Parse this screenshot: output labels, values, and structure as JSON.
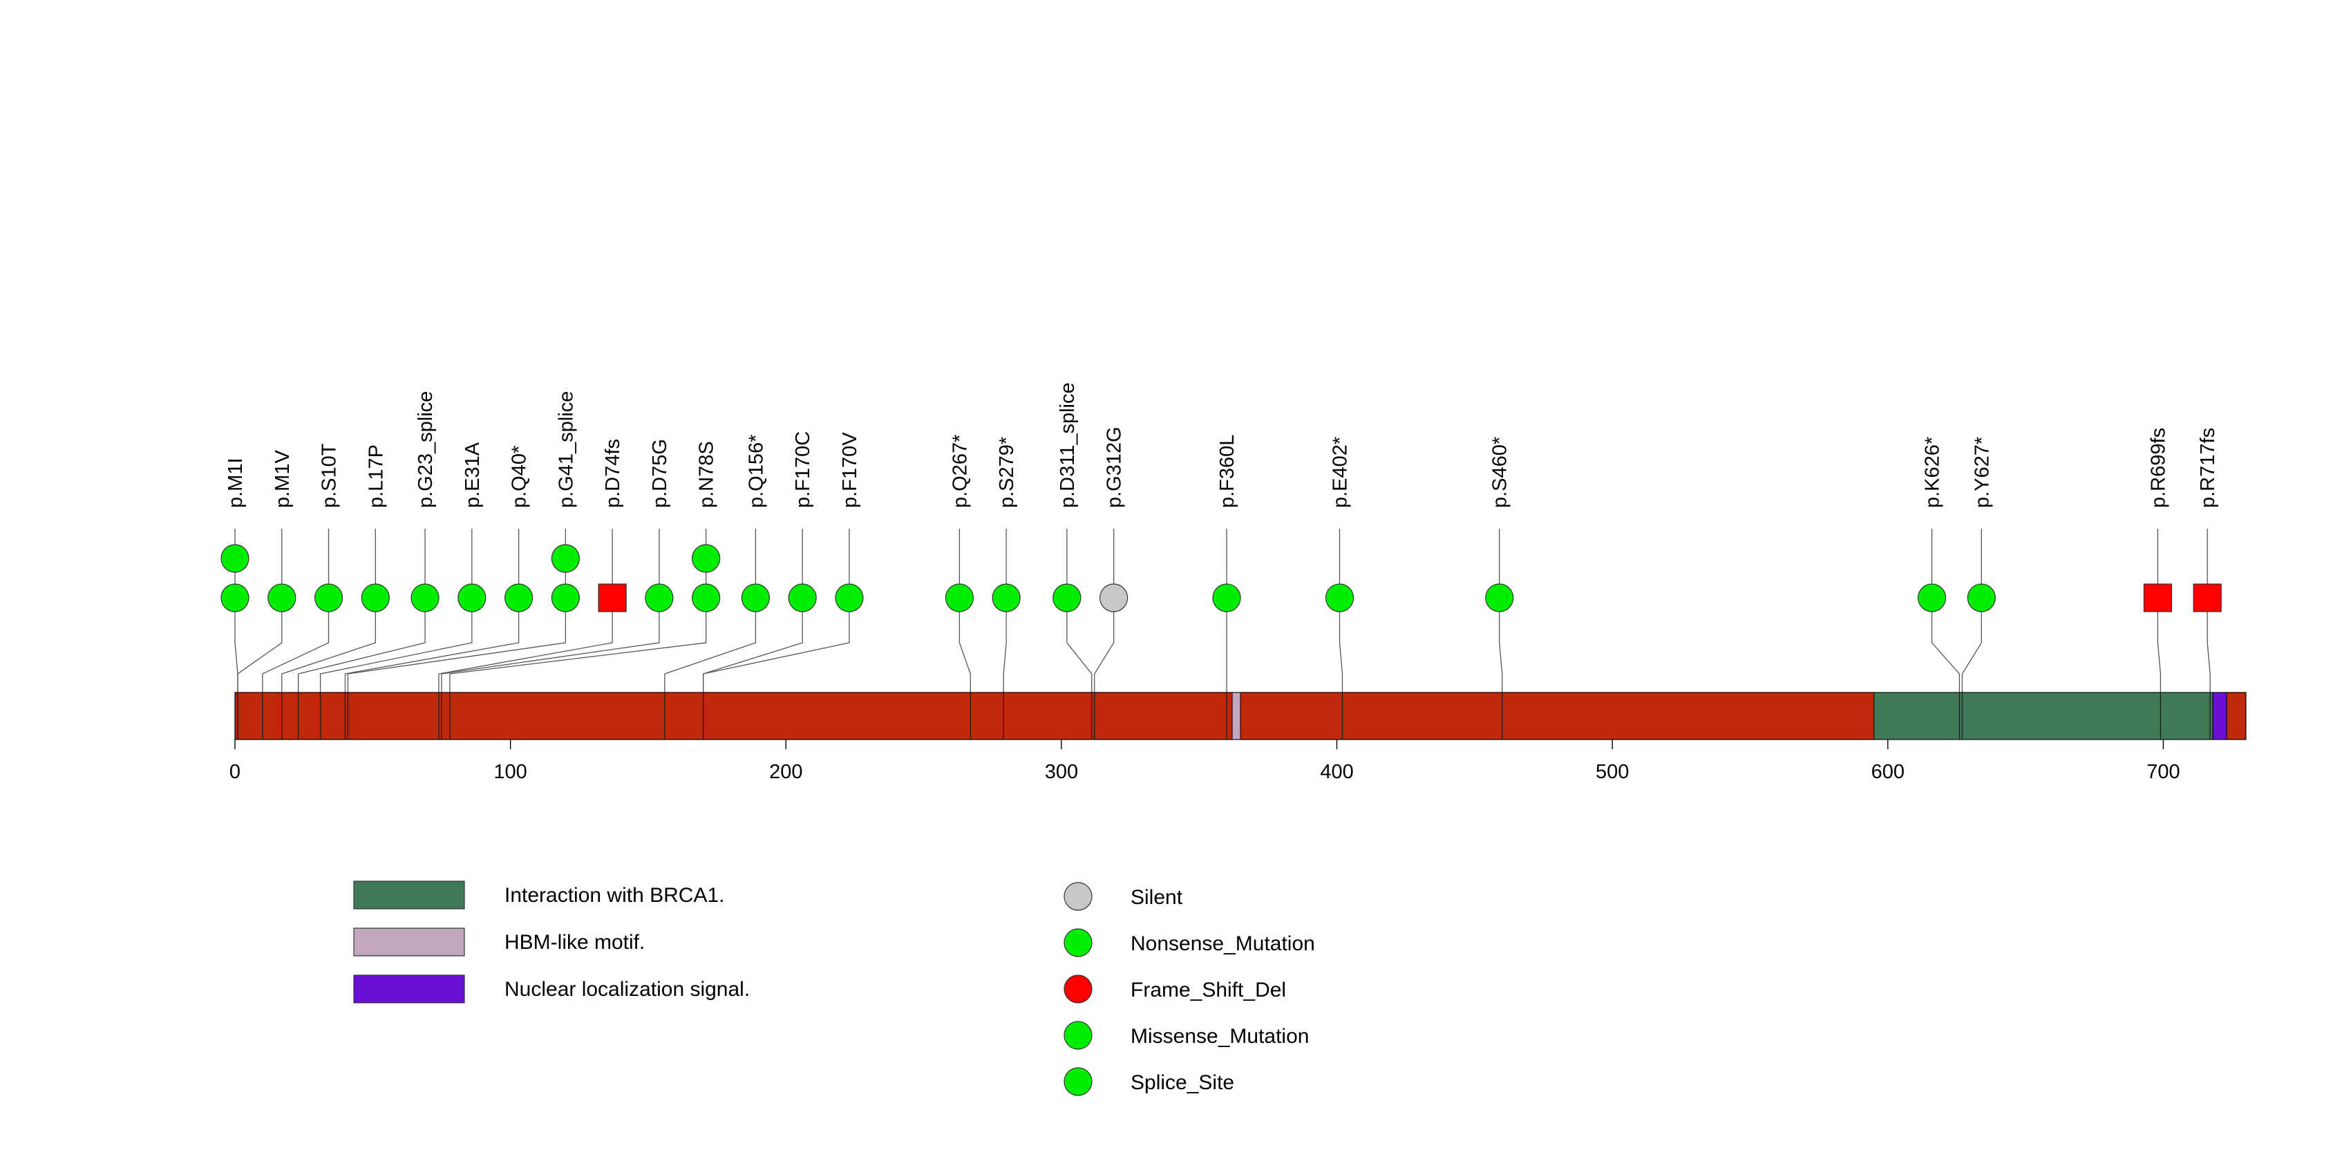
{
  "chart_data": {
    "type": "lollipop",
    "protein_length": 730,
    "x_ticks": [
      0,
      100,
      200,
      300,
      400,
      500,
      600,
      700
    ],
    "domains": [
      {
        "name": "Interaction with BRCA1.",
        "start": 595,
        "end": 718,
        "color": "#3f7a56"
      },
      {
        "name": "HBM-like motif.",
        "start": 362,
        "end": 365,
        "color": "#c4a6c0"
      },
      {
        "name": "Nuclear localization signal.",
        "start": 718,
        "end": 723,
        "color": "#6a0fd6"
      }
    ],
    "backbone_color": "#c1280a",
    "mutation_types": [
      {
        "name": "Silent",
        "color": "#c8c8c8",
        "shape": "circle"
      },
      {
        "name": "Nonsense_Mutation",
        "color": "#00ee00",
        "shape": "circle"
      },
      {
        "name": "Frame_Shift_Del",
        "color": "#ff0000",
        "shape": "square"
      },
      {
        "name": "Missense_Mutation",
        "color": "#00ee00",
        "shape": "circle"
      },
      {
        "name": "Splice_Site",
        "color": "#00ee00",
        "shape": "circle"
      }
    ],
    "mutations": [
      {
        "label": "p.M1I",
        "position": 1,
        "slot": 0,
        "count": 2,
        "type": "Missense_Mutation"
      },
      {
        "label": "p.M1V",
        "position": 1,
        "slot": 17,
        "count": 1,
        "type": "Missense_Mutation"
      },
      {
        "label": "p.S10T",
        "position": 10,
        "slot": 34,
        "count": 1,
        "type": "Missense_Mutation"
      },
      {
        "label": "p.L17P",
        "position": 17,
        "slot": 51,
        "count": 1,
        "type": "Missense_Mutation"
      },
      {
        "label": "p.G23_splice",
        "position": 23,
        "slot": 69,
        "count": 1,
        "type": "Splice_Site"
      },
      {
        "label": "p.E31A",
        "position": 31,
        "slot": 86,
        "count": 1,
        "type": "Missense_Mutation"
      },
      {
        "label": "p.Q40*",
        "position": 40,
        "slot": 103,
        "count": 1,
        "type": "Nonsense_Mutation"
      },
      {
        "label": "p.G41_splice",
        "position": 41,
        "slot": 120,
        "count": 2,
        "type": "Splice_Site"
      },
      {
        "label": "p.D74fs",
        "position": 74,
        "slot": 137,
        "count": 1,
        "type": "Frame_Shift_Del"
      },
      {
        "label": "p.D75G",
        "position": 75,
        "slot": 154,
        "count": 1,
        "type": "Missense_Mutation"
      },
      {
        "label": "p.N78S",
        "position": 78,
        "slot": 171,
        "count": 2,
        "type": "Missense_Mutation"
      },
      {
        "label": "p.Q156*",
        "position": 156,
        "slot": 189,
        "count": 1,
        "type": "Nonsense_Mutation"
      },
      {
        "label": "p.F170C",
        "position": 170,
        "slot": 206,
        "count": 1,
        "type": "Missense_Mutation"
      },
      {
        "label": "p.F170V",
        "position": 170,
        "slot": 223,
        "count": 1,
        "type": "Missense_Mutation"
      },
      {
        "label": "p.Q267*",
        "position": 267,
        "slot": 263,
        "count": 1,
        "type": "Nonsense_Mutation"
      },
      {
        "label": "p.S279*",
        "position": 279,
        "slot": 280,
        "count": 1,
        "type": "Nonsense_Mutation"
      },
      {
        "label": "p.D311_splice",
        "position": 311,
        "slot": 302,
        "count": 1,
        "type": "Splice_Site"
      },
      {
        "label": "p.G312G",
        "position": 312,
        "slot": 319,
        "count": 1,
        "type": "Silent"
      },
      {
        "label": "p.F360L",
        "position": 360,
        "slot": 360,
        "count": 1,
        "type": "Missense_Mutation"
      },
      {
        "label": "p.E402*",
        "position": 402,
        "slot": 401,
        "count": 1,
        "type": "Nonsense_Mutation"
      },
      {
        "label": "p.S460*",
        "position": 460,
        "slot": 459,
        "count": 1,
        "type": "Nonsense_Mutation"
      },
      {
        "label": "p.K626*",
        "position": 626,
        "slot": 616,
        "count": 1,
        "type": "Nonsense_Mutation"
      },
      {
        "label": "p.Y627*",
        "position": 627,
        "slot": 634,
        "count": 1,
        "type": "Nonsense_Mutation"
      },
      {
        "label": "p.R699fs",
        "position": 699,
        "slot": 698,
        "count": 1,
        "type": "Frame_Shift_Del"
      },
      {
        "label": "p.R717fs",
        "position": 717,
        "slot": 716,
        "count": 1,
        "type": "Frame_Shift_Del"
      }
    ]
  }
}
